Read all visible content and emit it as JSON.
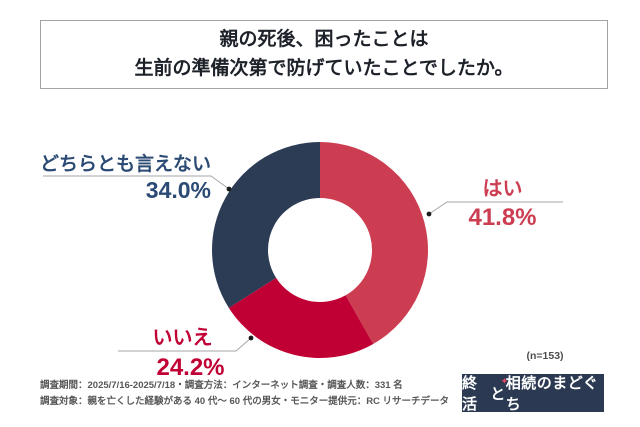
{
  "title": {
    "line1": "親の死後、困ったことは",
    "line2": "生前の準備次第で防げていたことでしたか。"
  },
  "chart_data": {
    "type": "pie",
    "donut": true,
    "donut_hole_ratio": 0.48,
    "start_angle_deg": 0,
    "direction": "clockwise",
    "title": "親の死後、困ったことは生前の準備次第で防げていたことでしたか。",
    "series": [
      {
        "name": "はい",
        "value": 41.8,
        "pct_label": "41.8%",
        "color": "#cc3d52"
      },
      {
        "name": "いいえ",
        "value": 24.2,
        "pct_label": "24.2%",
        "color": "#c00034"
      },
      {
        "name": "どちらとも言えない",
        "value": 34.0,
        "pct_label": "34.0%",
        "color": "#2d3c55"
      }
    ],
    "sample_note": "(n=153)",
    "legend_position": "callout-labels",
    "grid": false
  },
  "footer": {
    "line1": "調査期間：2025/7/16-2025/7/18・調査方法：インターネット調査・調査人数：331 名",
    "line2": "調査対象：親を亡くした経験がある 40 代〜 60 代の男女・モニター提供元：RC リサーチデータ"
  },
  "logo": {
    "part1": "終活",
    "accent": "と",
    "part2": "相続のまどぐち",
    "sparkle_glyph": "✦",
    "bg_color": "#2b3a52",
    "accent_color": "#e8485f"
  },
  "colors": {
    "label_navy": "#2b4a74",
    "label_red": "#cc3d52",
    "label_darkred": "#c00034",
    "leader_line": "#a6a6a6",
    "leader_dot": "#1c1c1c"
  }
}
